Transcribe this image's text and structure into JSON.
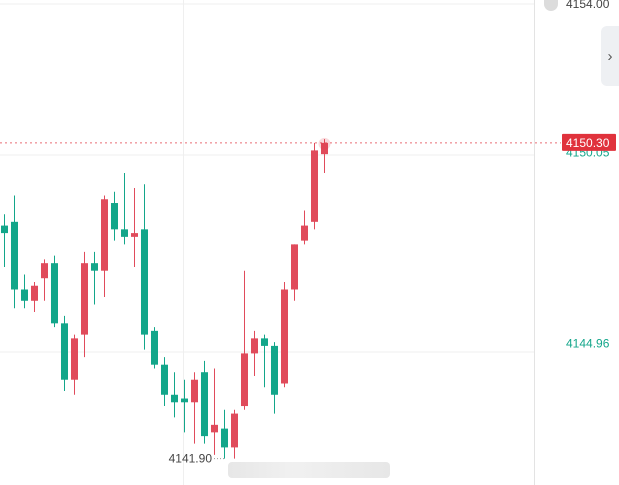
{
  "chart_data": {
    "type": "candlestick",
    "ylim": [
      4141.2,
      4154.1
    ],
    "price_labels": [
      {
        "value": 4154.0,
        "text": "4154.00",
        "style": "top"
      },
      {
        "value": 4150.05,
        "text": "4150.05",
        "style": "green"
      },
      {
        "value": 4144.96,
        "text": "4144.96",
        "style": "green"
      }
    ],
    "last_price": {
      "value": 4150.3,
      "text": "4150.30"
    },
    "min_marker": {
      "value": 4141.9,
      "text": "4141.90"
    },
    "colors": {
      "up": "#e04b5b",
      "down": "#13a68a",
      "last": "#e0323c",
      "grid": "#efefef",
      "axis_green": "#13a68a"
    },
    "candles": [
      {
        "o": 4148.1,
        "h": 4148.4,
        "l": 4147.0,
        "c": 4147.9
      },
      {
        "o": 4148.2,
        "h": 4148.9,
        "l": 4145.9,
        "c": 4146.4
      },
      {
        "o": 4146.4,
        "h": 4146.8,
        "l": 4145.9,
        "c": 4146.1
      },
      {
        "o": 4146.1,
        "h": 4146.6,
        "l": 4145.8,
        "c": 4146.5
      },
      {
        "o": 4146.7,
        "h": 4147.2,
        "l": 4146.1,
        "c": 4147.1
      },
      {
        "o": 4147.1,
        "h": 4147.3,
        "l": 4145.4,
        "c": 4145.5
      },
      {
        "o": 4145.5,
        "h": 4145.7,
        "l": 4143.7,
        "c": 4144.0
      },
      {
        "o": 4144.0,
        "h": 4145.2,
        "l": 4143.6,
        "c": 4145.1
      },
      {
        "o": 4145.2,
        "h": 4147.4,
        "l": 4144.6,
        "c": 4147.1
      },
      {
        "o": 4147.1,
        "h": 4147.4,
        "l": 4146.0,
        "c": 4146.9
      },
      {
        "o": 4146.9,
        "h": 4148.9,
        "l": 4146.2,
        "c": 4148.8
      },
      {
        "o": 4148.7,
        "h": 4149.0,
        "l": 4147.7,
        "c": 4148.0
      },
      {
        "o": 4148.0,
        "h": 4149.5,
        "l": 4147.6,
        "c": 4147.8
      },
      {
        "o": 4147.8,
        "h": 4149.1,
        "l": 4147.0,
        "c": 4147.9
      },
      {
        "o": 4148.0,
        "h": 4149.2,
        "l": 4144.8,
        "c": 4145.2
      },
      {
        "o": 4145.3,
        "h": 4145.4,
        "l": 4144.3,
        "c": 4144.4
      },
      {
        "o": 4144.4,
        "h": 4144.6,
        "l": 4143.3,
        "c": 4143.6
      },
      {
        "o": 4143.6,
        "h": 4144.2,
        "l": 4143.0,
        "c": 4143.4
      },
      {
        "o": 4143.5,
        "h": 4144.0,
        "l": 4142.6,
        "c": 4143.4
      },
      {
        "o": 4143.4,
        "h": 4144.2,
        "l": 4142.3,
        "c": 4144.0
      },
      {
        "o": 4144.2,
        "h": 4144.5,
        "l": 4142.3,
        "c": 4142.5
      },
      {
        "o": 4142.6,
        "h": 4144.3,
        "l": 4142.0,
        "c": 4142.8
      },
      {
        "o": 4142.7,
        "h": 4143.2,
        "l": 4141.9,
        "c": 4142.2
      },
      {
        "o": 4142.2,
        "h": 4143.2,
        "l": 4141.9,
        "c": 4143.1
      },
      {
        "o": 4143.3,
        "h": 4146.9,
        "l": 4143.2,
        "c": 4144.7
      },
      {
        "o": 4144.7,
        "h": 4145.3,
        "l": 4144.1,
        "c": 4145.1
      },
      {
        "o": 4145.1,
        "h": 4145.2,
        "l": 4143.8,
        "c": 4144.9
      },
      {
        "o": 4144.9,
        "h": 4145.0,
        "l": 4143.1,
        "c": 4143.6
      },
      {
        "o": 4143.9,
        "h": 4146.6,
        "l": 4143.8,
        "c": 4146.4
      },
      {
        "o": 4146.4,
        "h": 4147.6,
        "l": 4146.1,
        "c": 4147.6
      },
      {
        "o": 4147.7,
        "h": 4148.5,
        "l": 4147.6,
        "c": 4148.1
      },
      {
        "o": 4148.2,
        "h": 4150.3,
        "l": 4148.0,
        "c": 4150.1
      },
      {
        "o": 4150.0,
        "h": 4150.4,
        "l": 4149.5,
        "c": 4150.3
      }
    ]
  }
}
